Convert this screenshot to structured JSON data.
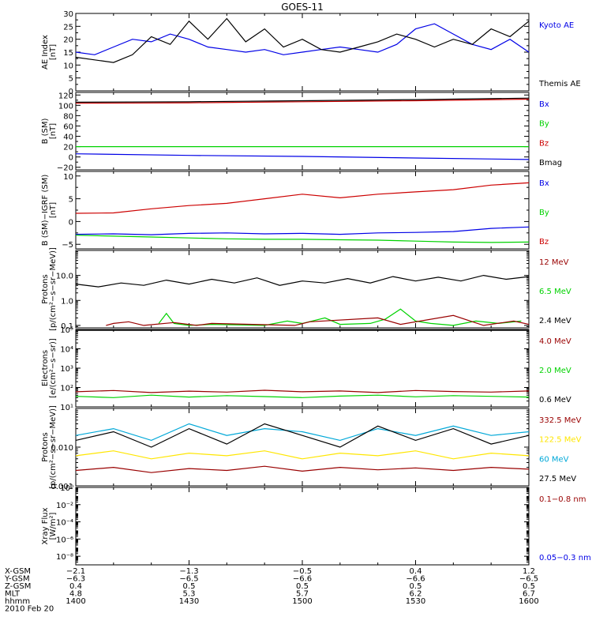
{
  "title": "GOES-11",
  "date_label": "2010 Feb 20",
  "colors": {
    "black": "#000000",
    "blue": "#0000e6",
    "green": "#00d200",
    "red": "#cc0000",
    "darkred": "#990000",
    "yellow": "#ffe600",
    "cyan": "#00a8d8"
  },
  "panels": [
    {
      "id": "ae",
      "ylabel": [
        "AE Index",
        "[nT]"
      ],
      "scale": "linear",
      "ylim": [
        0,
        30
      ],
      "ticks": [
        0,
        5,
        10,
        15,
        20,
        25,
        30
      ],
      "tick_labels": [
        "0",
        "5",
        "10",
        "15",
        "20",
        "25",
        "30"
      ],
      "legend": [
        {
          "label": "Kyoto AE",
          "color": "blue"
        },
        {
          "label": "Themis AE",
          "color": "black"
        }
      ]
    },
    {
      "id": "bsm",
      "ylabel": [
        "B (SM)",
        "[nT]"
      ],
      "scale": "linear",
      "ylim": [
        -25,
        125
      ],
      "ticks": [
        -20,
        0,
        20,
        40,
        60,
        80,
        100,
        120
      ],
      "tick_labels": [
        "−20",
        "0",
        "20",
        "40",
        "60",
        "80",
        "100",
        "120"
      ],
      "legend": [
        {
          "label": "Bx",
          "color": "blue"
        },
        {
          "label": "By",
          "color": "green"
        },
        {
          "label": "Bz",
          "color": "red"
        },
        {
          "label": "Bmag",
          "color": "black"
        }
      ]
    },
    {
      "id": "bigrf",
      "ylabel": [
        "B (SM)−IGRF (SM)",
        "[nT]"
      ],
      "scale": "linear",
      "ylim": [
        -6,
        11
      ],
      "ticks": [
        -5,
        0,
        5,
        10
      ],
      "tick_labels": [
        "−5",
        "0",
        "5",
        "10"
      ],
      "legend": [
        {
          "label": "Bx",
          "color": "blue"
        },
        {
          "label": "By",
          "color": "green"
        },
        {
          "label": "Bz",
          "color": "red"
        }
      ]
    },
    {
      "id": "protons_hi",
      "ylabel": [
        "Protons",
        "[p/(cm²−s−sr−MeV)]"
      ],
      "scale": "log",
      "ylim": [
        0.08,
        100
      ],
      "ticks": [
        0.1,
        1,
        10
      ],
      "tick_labels": [
        "0.1",
        "1.0",
        "10.0"
      ],
      "legend": [
        {
          "label": "12 MeV",
          "color": "darkred"
        },
        {
          "label": "6.5 MeV",
          "color": "green"
        },
        {
          "label": "2.4 MeV",
          "color": "black"
        }
      ]
    },
    {
      "id": "electrons",
      "ylabel": [
        "Electrons",
        "[e/(cm²−s−sr)]"
      ],
      "scale": "log",
      "ylim": [
        10,
        100000
      ],
      "ticks": [
        10,
        100,
        1000,
        10000,
        100000
      ],
      "tick_labels": [
        "10¹",
        "10²",
        "10³",
        "10⁴",
        "10⁵"
      ],
      "legend": [
        {
          "label": "4.0 MeV",
          "color": "darkred"
        },
        {
          "label": "2.0 MeV",
          "color": "green"
        },
        {
          "label": "0.6 MeV",
          "color": "black"
        }
      ]
    },
    {
      "id": "protons_lo",
      "ylabel": [
        "Protons",
        "[p/(cm²−s−sr−MeV)]"
      ],
      "scale": "log",
      "ylim": [
        0.001,
        0.1
      ],
      "ticks": [
        0.001,
        0.01
      ],
      "tick_labels": [
        "0.001",
        "0.010"
      ],
      "legend": [
        {
          "label": "332.5 MeV",
          "color": "darkred"
        },
        {
          "label": "122.5 MeV",
          "color": "yellow"
        },
        {
          "label": "60 MeV",
          "color": "cyan"
        },
        {
          "label": "27.5 MeV",
          "color": "black"
        }
      ]
    },
    {
      "id": "xray",
      "ylabel": [
        "Xray Flux",
        "[W/m²]"
      ],
      "scale": "log",
      "ylim": [
        1e-09,
        1
      ],
      "ticks": [
        1e-08,
        1e-06,
        0.0001,
        0.01,
        1
      ],
      "tick_labels": [
        "10⁻⁸",
        "10⁻⁶",
        "10⁻⁴",
        "10⁻²",
        "10⁰"
      ],
      "legend": [
        {
          "label": "0.1−0.8 nm",
          "color": "darkred"
        },
        {
          "label": "0.05−0.3 nm",
          "color": "blue"
        }
      ]
    }
  ],
  "x_axis": {
    "rows": [
      {
        "label": "X-GSM",
        "values": [
          "−2.1",
          "−1.3",
          "−0.5",
          "0.4",
          "1.2"
        ]
      },
      {
        "label": "Y-GSM",
        "values": [
          "−6.3",
          "−6.5",
          "−6.6",
          "−6.6",
          "−6.5"
        ]
      },
      {
        "label": "Z-GSM",
        "values": [
          "0.4",
          "0.5",
          "0.5",
          "0.5",
          "0.5"
        ]
      },
      {
        "label": "MLT",
        "values": [
          "4.8",
          "5.3",
          "5.7",
          "6.2",
          "6.7"
        ]
      },
      {
        "label": "hhmm",
        "values": [
          "1400",
          "1430",
          "1500",
          "1530",
          "1600"
        ]
      }
    ]
  },
  "chart_data": {
    "type": "line",
    "title": "GOES-11",
    "x_unit": "UT minutes",
    "x_range": [
      "1400",
      "1600"
    ],
    "panels": [
      {
        "id": "ae",
        "series": [
          {
            "name": "Kyoto AE",
            "color": "blue",
            "x": [
              0,
              5,
              10,
              15,
              20,
              25,
              30,
              35,
              40,
              45,
              50,
              55,
              60,
              65,
              70,
              75,
              80,
              85,
              90,
              95,
              100,
              105,
              110,
              115,
              120
            ],
            "y": [
              15,
              14,
              17,
              20,
              19,
              22,
              20,
              17,
              16,
              15,
              16,
              14,
              15,
              16,
              17,
              16,
              15,
              18,
              24,
              26,
              22,
              18,
              16,
              20,
              15
            ]
          },
          {
            "name": "Themis AE",
            "color": "black",
            "x": [
              0,
              5,
              10,
              15,
              20,
              25,
              30,
              35,
              40,
              45,
              50,
              55,
              60,
              65,
              70,
              75,
              80,
              85,
              90,
              95,
              100,
              105,
              110,
              115,
              120
            ],
            "y": [
              13,
              12,
              11,
              14,
              21,
              18,
              27,
              20,
              28,
              19,
              24,
              17,
              20,
              16,
              15,
              17,
              19,
              22,
              20,
              17,
              20,
              18,
              24,
              21,
              27
            ]
          }
        ]
      },
      {
        "id": "bsm",
        "series": [
          {
            "name": "Bx",
            "color": "blue",
            "x": [
              0,
              30,
              60,
              90,
              120
            ],
            "y": [
              6,
              3,
              1,
              -2,
              -5
            ]
          },
          {
            "name": "By",
            "color": "green",
            "x": [
              0,
              30,
              60,
              90,
              120
            ],
            "y": [
              20,
              20,
              20,
              20,
              20
            ]
          },
          {
            "name": "Bz",
            "color": "red",
            "x": [
              0,
              30,
              60,
              90,
              120
            ],
            "y": [
              104,
              105,
              107,
              109,
              112
            ]
          },
          {
            "name": "Bmag",
            "color": "black",
            "x": [
              0,
              30,
              60,
              90,
              120
            ],
            "y": [
              106,
              107,
              109,
              111,
              114
            ]
          }
        ]
      },
      {
        "id": "bigrf",
        "series": [
          {
            "name": "Bx",
            "color": "blue",
            "x": [
              0,
              10,
              20,
              30,
              40,
              50,
              60,
              70,
              80,
              90,
              100,
              110,
              120
            ],
            "y": [
              -2.8,
              -2.7,
              -2.9,
              -2.6,
              -2.5,
              -2.7,
              -2.6,
              -2.8,
              -2.5,
              -2.4,
              -2.2,
              -1.5,
              -1.2
            ]
          },
          {
            "name": "By",
            "color": "green",
            "x": [
              0,
              10,
              20,
              30,
              40,
              50,
              60,
              70,
              80,
              90,
              100,
              110,
              120
            ],
            "y": [
              -3.0,
              -3.2,
              -3.4,
              -3.6,
              -3.8,
              -3.9,
              -3.9,
              -4.0,
              -4.1,
              -4.3,
              -4.5,
              -4.6,
              -4.5
            ]
          },
          {
            "name": "Bz",
            "color": "red",
            "x": [
              0,
              10,
              20,
              30,
              40,
              50,
              60,
              70,
              80,
              90,
              100,
              110,
              120
            ],
            "y": [
              1.8,
              1.9,
              2.8,
              3.5,
              4.0,
              5.0,
              6.0,
              5.2,
              6.0,
              6.5,
              7.0,
              8.0,
              8.5
            ]
          }
        ]
      },
      {
        "id": "protons_hi",
        "series": [
          {
            "name": "2.4 MeV",
            "color": "black",
            "x": [
              0,
              6,
              12,
              18,
              24,
              30,
              36,
              42,
              48,
              54,
              60,
              66,
              72,
              78,
              84,
              90,
              96,
              102,
              108,
              114,
              120
            ],
            "y": [
              4.5,
              3.5,
              5,
              4,
              6.5,
              4.5,
              7,
              5,
              8,
              4,
              6,
              5,
              7.5,
              5,
              9,
              6,
              8.5,
              6,
              10,
              7,
              9
            ]
          },
          {
            "name": "6.5 MeV",
            "color": "green",
            "x": [
              22,
              24,
              26,
              30,
              36,
              50,
              56,
              60,
              66,
              70,
              78,
              82,
              86,
              90,
              94,
              100,
              106,
              112,
              118
            ],
            "y": [
              0.12,
              0.3,
              0.12,
              0.1,
              0.11,
              0.1,
              0.15,
              0.12,
              0.2,
              0.11,
              0.12,
              0.18,
              0.45,
              0.15,
              0.12,
              0.1,
              0.15,
              0.12,
              0.15
            ]
          },
          {
            "name": "12 MeV",
            "color": "darkred",
            "x": [
              8,
              10,
              14,
              18,
              26,
              32,
              36,
              58,
              62,
              80,
              86,
              100,
              108,
              116,
              120
            ],
            "y": [
              0.1,
              0.12,
              0.14,
              0.1,
              0.13,
              0.1,
              0.12,
              0.1,
              0.14,
              0.2,
              0.11,
              0.25,
              0.1,
              0.15,
              0.11
            ]
          }
        ]
      },
      {
        "id": "electrons",
        "series": [
          {
            "name": "0.6 MeV",
            "color": "black",
            "x": [
              0,
              30,
              60,
              90,
              120
            ],
            "y": [
              90000,
              90000,
              90000,
              90000,
              90000
            ]
          },
          {
            "name": "4.0 MeV",
            "color": "darkred",
            "x": [
              0,
              10,
              20,
              30,
              40,
              50,
              60,
              70,
              80,
              90,
              100,
              110,
              120
            ],
            "y": [
              60,
              70,
              55,
              65,
              58,
              72,
              60,
              66,
              55,
              70,
              62,
              58,
              66
            ]
          },
          {
            "name": "2.0 MeV",
            "color": "green",
            "x": [
              0,
              10,
              20,
              30,
              40,
              50,
              60,
              70,
              80,
              90,
              100,
              110,
              120
            ],
            "y": [
              35,
              30,
              40,
              32,
              38,
              34,
              30,
              36,
              40,
              33,
              38,
              35,
              32
            ]
          }
        ]
      },
      {
        "id": "protons_lo",
        "series": [
          {
            "name": "60 MeV",
            "color": "cyan",
            "x": [
              0,
              10,
              20,
              30,
              40,
              50,
              60,
              70,
              80,
              90,
              100,
              110,
              120
            ],
            "y": [
              0.02,
              0.03,
              0.015,
              0.04,
              0.02,
              0.03,
              0.025,
              0.015,
              0.03,
              0.02,
              0.035,
              0.02,
              0.025
            ]
          },
          {
            "name": "27.5 MeV",
            "color": "black",
            "x": [
              0,
              10,
              20,
              30,
              40,
              50,
              60,
              70,
              80,
              90,
              100,
              110,
              120
            ],
            "y": [
              0.015,
              0.025,
              0.01,
              0.03,
              0.012,
              0.04,
              0.02,
              0.01,
              0.035,
              0.015,
              0.03,
              0.012,
              0.02
            ]
          },
          {
            "name": "122.5 MeV",
            "color": "yellow",
            "x": [
              0,
              10,
              20,
              30,
              40,
              50,
              60,
              70,
              80,
              90,
              100,
              110,
              120
            ],
            "y": [
              0.006,
              0.008,
              0.005,
              0.007,
              0.006,
              0.008,
              0.005,
              0.007,
              0.006,
              0.008,
              0.005,
              0.007,
              0.006
            ]
          },
          {
            "name": "332.5 MeV",
            "color": "darkred",
            "x": [
              0,
              10,
              20,
              30,
              40,
              50,
              60,
              70,
              80,
              90,
              100,
              110,
              120
            ],
            "y": [
              0.0025,
              0.003,
              0.0022,
              0.0028,
              0.0025,
              0.0032,
              0.0024,
              0.003,
              0.0026,
              0.0029,
              0.0025,
              0.003,
              0.0027
            ]
          }
        ]
      },
      {
        "id": "xray",
        "series": []
      }
    ]
  }
}
